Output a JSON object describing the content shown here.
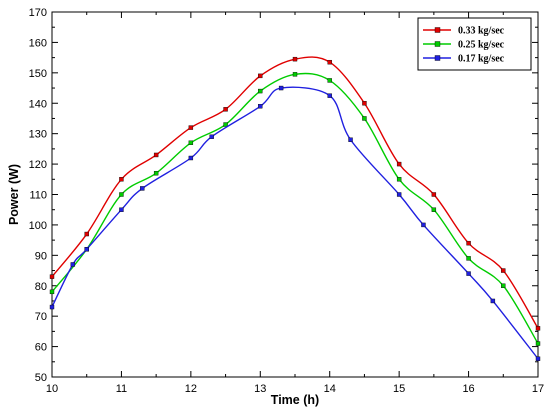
{
  "chart_data": {
    "type": "line",
    "xlabel": "Time (h)",
    "ylabel": "Power (W)",
    "xlim": [
      10,
      17
    ],
    "ylim": [
      50,
      170
    ],
    "xticks": [
      "10",
      "11",
      "12",
      "13",
      "14",
      "15",
      "16",
      "17"
    ],
    "yticks": [
      "50",
      "60",
      "70",
      "80",
      "90",
      "100",
      "110",
      "120",
      "130",
      "140",
      "150",
      "160",
      "170"
    ],
    "grid": false,
    "legend_position": "top-right",
    "series": [
      {
        "name": "0.33 kg/sec",
        "color": "#e00000",
        "x": [
          10,
          10.5,
          11,
          11.5,
          12,
          12.5,
          13,
          13.5,
          14,
          14.5,
          15,
          15.5,
          16,
          16.5,
          17
        ],
        "y": [
          83,
          97,
          115,
          123,
          132,
          138,
          149,
          154.5,
          153.5,
          140,
          120,
          110,
          94,
          85,
          66
        ]
      },
      {
        "name": "0.25 kg/sec",
        "color": "#00cc00",
        "x": [
          10,
          10.5,
          11,
          11.5,
          12,
          12.5,
          13,
          13.5,
          14,
          14.5,
          15,
          15.5,
          16,
          16.5,
          17
        ],
        "y": [
          78,
          92,
          110,
          117,
          127,
          133,
          144,
          149.5,
          147.5,
          135,
          115,
          105,
          89,
          80,
          61
        ]
      },
      {
        "name": "0.17 kg/sec",
        "color": "#2020e0",
        "x": [
          10,
          10.3,
          10.5,
          11,
          11.3,
          12,
          12.3,
          13,
          13.3,
          14,
          14.3,
          15,
          15.35,
          16,
          16.35,
          17
        ],
        "y": [
          73,
          87,
          92,
          105,
          112,
          122,
          129,
          139,
          145,
          142.5,
          128,
          110,
          100,
          84,
          75,
          56
        ]
      }
    ]
  }
}
